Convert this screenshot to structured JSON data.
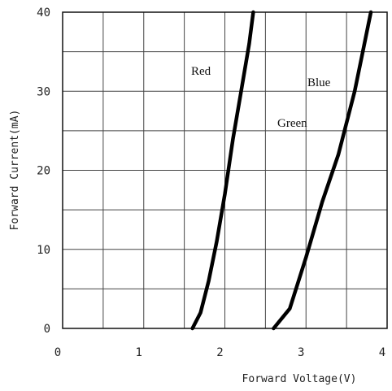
{
  "chart_data": {
    "type": "line",
    "title": "",
    "xlabel": "Forward Voltage(V)",
    "ylabel": "Forward Current(mA)",
    "xlim": [
      0,
      4
    ],
    "ylim": [
      0,
      40
    ],
    "x_ticks": [
      0,
      0.5,
      1,
      1.5,
      2,
      2.5,
      3,
      3.5,
      4
    ],
    "y_ticks": [
      0,
      5,
      10,
      15,
      20,
      25,
      30,
      35,
      40
    ],
    "x_tick_labels": [
      "0",
      "1",
      "2",
      "3",
      "4"
    ],
    "y_tick_labels": [
      "0",
      "10",
      "20",
      "30",
      "40"
    ],
    "grid": true,
    "series": [
      {
        "name": "Red",
        "color": "#000000",
        "x": [
          1.6,
          1.7,
          1.8,
          1.9,
          2.0,
          2.1,
          2.2,
          2.3,
          2.35
        ],
        "y": [
          0,
          2,
          6,
          11,
          17,
          24,
          30,
          36,
          40
        ]
      },
      {
        "name": "Blue",
        "color": "#000000",
        "x": [
          2.6,
          2.8,
          3.0,
          3.2,
          3.4,
          3.6,
          3.7,
          3.8
        ],
        "y": [
          0,
          2.5,
          9,
          16,
          22,
          30,
          35,
          40
        ]
      }
    ],
    "annotations": [
      "Red",
      "Blue",
      "Green"
    ]
  }
}
